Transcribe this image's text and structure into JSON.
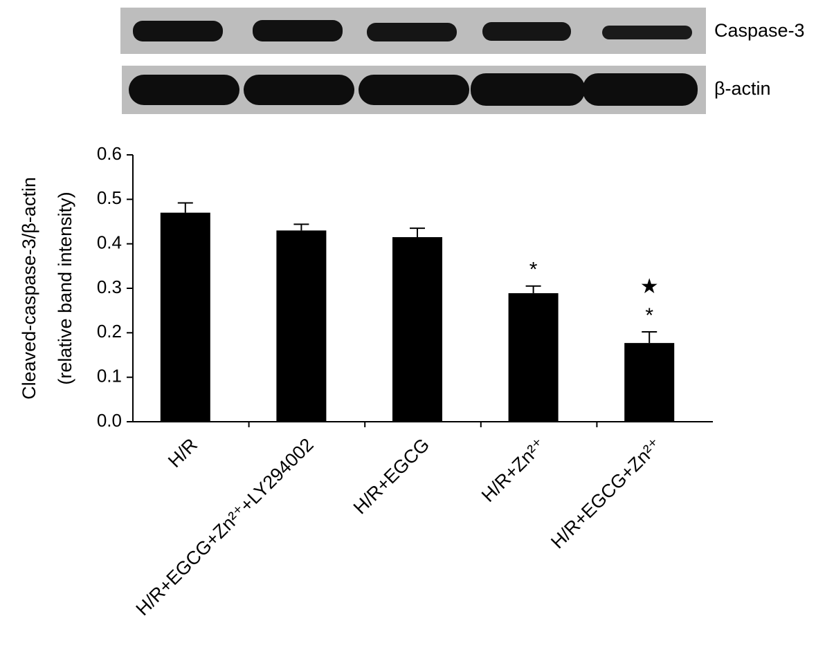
{
  "chart_data": {
    "type": "bar",
    "blot_labels": [
      "Caspase-3",
      "β-actin"
    ],
    "ylabel": [
      "Cleaved-caspase-3/β-actin",
      "(relative band intensity)"
    ],
    "categories": [
      "H/R",
      "H/R+EGCG+Zn²⁺+LY294002",
      "H/R+EGCG",
      "H/R+Zn²⁺",
      "H/R+EGCG+Zn²⁺"
    ],
    "values": [
      0.47,
      0.43,
      0.415,
      0.289,
      0.177
    ],
    "errors": [
      0.022,
      0.014,
      0.02,
      0.016,
      0.025
    ],
    "annotations": [
      null,
      null,
      null,
      [
        "*"
      ],
      [
        "*",
        "★"
      ]
    ],
    "color": "#000000",
    "ylim": [
      0,
      0.6
    ],
    "yticks": [
      {
        "value": 0,
        "label": "0.0"
      },
      0.1,
      0.2,
      0.3,
      0.4,
      0.5,
      0.6
    ]
  }
}
